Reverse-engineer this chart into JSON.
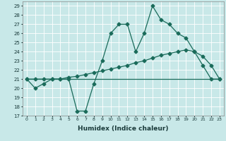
{
  "xlabel": "Humidex (Indice chaleur)",
  "bg_color": "#c8e8e8",
  "line_color": "#1a6b5a",
  "grid_color": "#ffffff",
  "xlim": [
    -0.5,
    23.5
  ],
  "ylim": [
    17,
    29.5
  ],
  "yticks": [
    17,
    18,
    19,
    20,
    21,
    22,
    23,
    24,
    25,
    26,
    27,
    28,
    29
  ],
  "xticks": [
    0,
    1,
    2,
    3,
    4,
    5,
    6,
    7,
    8,
    9,
    10,
    11,
    12,
    13,
    14,
    15,
    16,
    17,
    18,
    19,
    20,
    21,
    22,
    23
  ],
  "line1_x": [
    0,
    1,
    2,
    3,
    4,
    5,
    6,
    7,
    8,
    9,
    10,
    11,
    12,
    13,
    14,
    15,
    16,
    17,
    18,
    19,
    20,
    21,
    22,
    23
  ],
  "line1_y": [
    21,
    20,
    20.5,
    21,
    21,
    21,
    17.5,
    17.5,
    20.5,
    23,
    26,
    27,
    27,
    24,
    26,
    29,
    27.5,
    27,
    26,
    25.5,
    24,
    22.5,
    21,
    21
  ],
  "line2_x": [
    0,
    23
  ],
  "line2_y": [
    21,
    21
  ],
  "line3_x": [
    0,
    1,
    2,
    3,
    4,
    5,
    6,
    7,
    8,
    9,
    10,
    11,
    12,
    13,
    14,
    15,
    16,
    17,
    18,
    19,
    20,
    21,
    22,
    23
  ],
  "line3_y": [
    21,
    21,
    21,
    21,
    21,
    21.2,
    21.3,
    21.5,
    21.7,
    21.9,
    22.1,
    22.3,
    22.5,
    22.8,
    23.0,
    23.3,
    23.6,
    23.8,
    24.0,
    24.2,
    24.0,
    23.5,
    22.5,
    21
  ],
  "marker": "D",
  "markersize": 2.5,
  "linewidth": 0.9
}
